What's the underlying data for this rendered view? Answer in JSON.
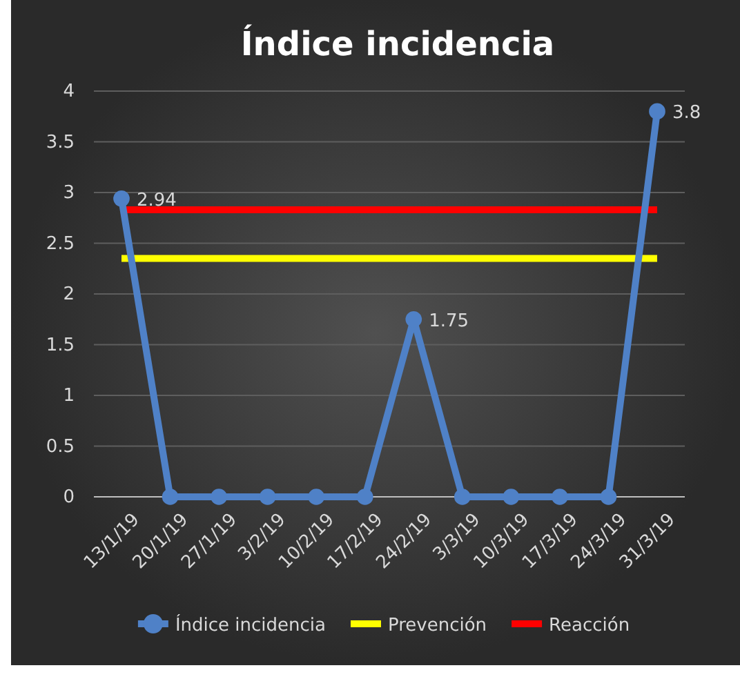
{
  "chart_data": {
    "type": "line",
    "title": "Índice incidencia",
    "categories": [
      "13/1/19",
      "20/1/19",
      "27/1/19",
      "3/2/19",
      "10/2/19",
      "17/2/19",
      "24/2/19",
      "3/3/19",
      "10/3/19",
      "17/3/19",
      "24/3/19",
      "31/3/19"
    ],
    "series": [
      {
        "name": "Índice incidencia",
        "color": "#4f81c7",
        "marker": "circle",
        "values": [
          2.94,
          0,
          0,
          0,
          0,
          0,
          1.75,
          0,
          0,
          0,
          0,
          3.8
        ],
        "value_labels": [
          "2.94",
          null,
          null,
          null,
          null,
          null,
          "1.75",
          null,
          null,
          null,
          null,
          "3.8"
        ]
      },
      {
        "name": "Prevención",
        "color": "#ffff00",
        "marker": "none",
        "values": [
          2.35,
          2.35,
          2.35,
          2.35,
          2.35,
          2.35,
          2.35,
          2.35,
          2.35,
          2.35,
          2.35,
          2.35
        ]
      },
      {
        "name": "Reacción",
        "color": "#ff0000",
        "marker": "none",
        "values": [
          2.83,
          2.83,
          2.83,
          2.83,
          2.83,
          2.83,
          2.83,
          2.83,
          2.83,
          2.83,
          2.83,
          2.83
        ]
      }
    ],
    "ylim": [
      0,
      4
    ],
    "yticks": [
      0,
      0.5,
      1,
      1.5,
      2,
      2.5,
      3,
      3.5,
      4
    ],
    "grid": "y",
    "legend": "bottom"
  }
}
